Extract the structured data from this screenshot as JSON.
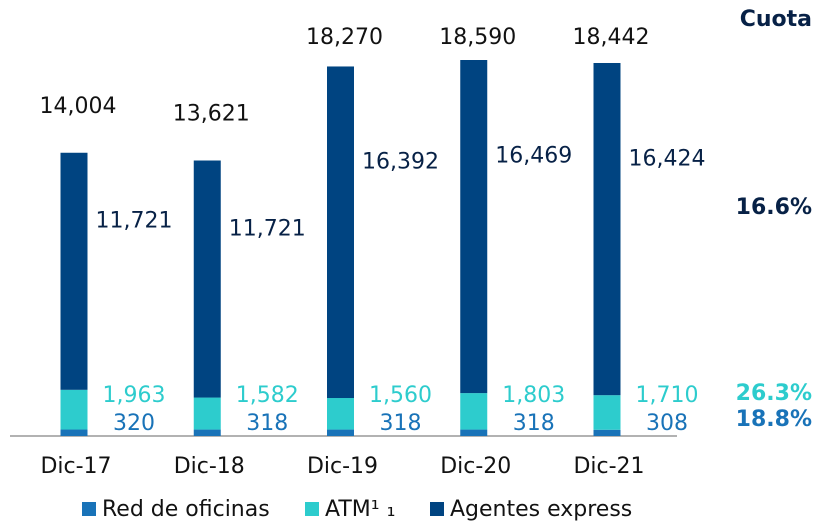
{
  "chart_data": {
    "type": "stacked_bar",
    "categories": [
      "Dic-17",
      "Dic-18",
      "Dic-19",
      "Dic-20",
      "Dic-21"
    ],
    "series": [
      {
        "name": "Red de oficinas",
        "color": "#1973b8",
        "values": [
          320,
          318,
          318,
          318,
          308
        ],
        "value_labels": [
          "320",
          "318",
          "318",
          "318",
          "308"
        ],
        "share": 18.8,
        "share_label": "18.8%"
      },
      {
        "name": "ATM¹ ₁",
        "color": "#2dcccd",
        "values": [
          1963,
          1582,
          1560,
          1803,
          1710
        ],
        "value_labels": [
          "1,963",
          "1,582",
          "1,560",
          "1,803",
          "1,710"
        ],
        "share": 26.3,
        "share_label": "26.3%"
      },
      {
        "name": "Agentes express",
        "color": "#004481",
        "values": [
          11721,
          11721,
          16392,
          16469,
          16424
        ],
        "value_labels": [
          "11,721",
          "11,721",
          "16,392",
          "16,469",
          "16,424"
        ],
        "share": 16.6,
        "share_label": "16.6%"
      }
    ],
    "totals": [
      14004,
      13621,
      18270,
      18590,
      18442
    ],
    "total_labels": [
      "14,004",
      "13,621",
      "18,270",
      "18,590",
      "18,442"
    ],
    "share_title": "Cuota",
    "ylim": [
      0,
      18590
    ],
    "legend": "bottom"
  }
}
